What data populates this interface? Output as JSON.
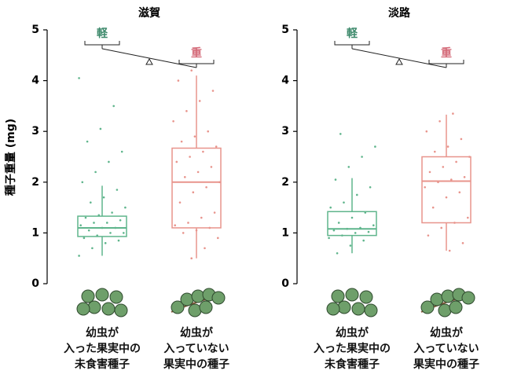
{
  "chart_data": [
    {
      "type": "box",
      "title": "滋賀",
      "ylabel": "種子重量 (mg)",
      "ylim": [
        0,
        5
      ],
      "yticks": [
        0,
        1,
        2,
        3,
        4,
        5
      ],
      "annotations": [
        "軽",
        "重"
      ],
      "categories": [
        "幼虫が\n入った果実中の\n未食害種子",
        "幼虫が\n入っていない\n果実中の種子"
      ],
      "boxes": [
        {
          "color": "#5fb58c",
          "whislo": 0.55,
          "q1": 0.93,
          "med": 1.1,
          "q3": 1.33,
          "whishi": 1.93,
          "points": [
            0.55,
            0.7,
            0.8,
            0.85,
            0.9,
            0.95,
            1.0,
            1.0,
            1.05,
            1.1,
            1.1,
            1.15,
            1.2,
            1.2,
            1.25,
            1.3,
            1.35,
            1.4,
            1.5,
            1.6,
            1.7,
            1.85,
            2.0,
            2.2,
            2.4,
            2.6,
            2.8,
            3.05,
            3.5,
            4.05
          ]
        },
        {
          "color": "#e8948c",
          "whislo": 0.5,
          "q1": 1.1,
          "med": 2.0,
          "q3": 2.67,
          "whishi": 4.1,
          "points": [
            0.5,
            0.7,
            0.9,
            1.0,
            1.05,
            1.1,
            1.15,
            1.2,
            1.3,
            1.4,
            1.6,
            1.8,
            1.9,
            2.0,
            2.1,
            2.2,
            2.3,
            2.4,
            2.5,
            2.6,
            2.7,
            2.8,
            2.9,
            3.0,
            3.2,
            3.4,
            3.6,
            3.8,
            4.0,
            4.2
          ]
        }
      ]
    },
    {
      "type": "box",
      "title": "淡路",
      "ylim": [
        0,
        5
      ],
      "yticks": [
        0,
        1,
        2,
        3,
        4,
        5
      ],
      "annotations": [
        "軽",
        "重"
      ],
      "categories": [
        "幼虫が\n入った果実中の\n未食害種子",
        "幼虫が\n入っていない\n果実中の種子"
      ],
      "boxes": [
        {
          "color": "#5fb58c",
          "whislo": 0.6,
          "q1": 0.95,
          "med": 1.08,
          "q3": 1.42,
          "whishi": 2.08,
          "points": [
            0.6,
            0.75,
            0.85,
            0.9,
            0.95,
            1.0,
            1.02,
            1.05,
            1.08,
            1.1,
            1.15,
            1.2,
            1.3,
            1.4,
            1.5,
            1.6,
            1.75,
            1.9,
            2.05,
            2.3,
            2.5,
            2.7,
            2.95
          ]
        },
        {
          "color": "#e8948c",
          "whislo": 0.65,
          "q1": 1.2,
          "med": 2.02,
          "q3": 2.5,
          "whishi": 3.33,
          "points": [
            0.65,
            0.8,
            0.95,
            1.1,
            1.2,
            1.3,
            1.5,
            1.7,
            1.8,
            1.9,
            2.0,
            2.05,
            2.1,
            2.2,
            2.3,
            2.4,
            2.5,
            2.6,
            2.7,
            2.85,
            3.0,
            3.2,
            3.35
          ]
        }
      ]
    }
  ]
}
